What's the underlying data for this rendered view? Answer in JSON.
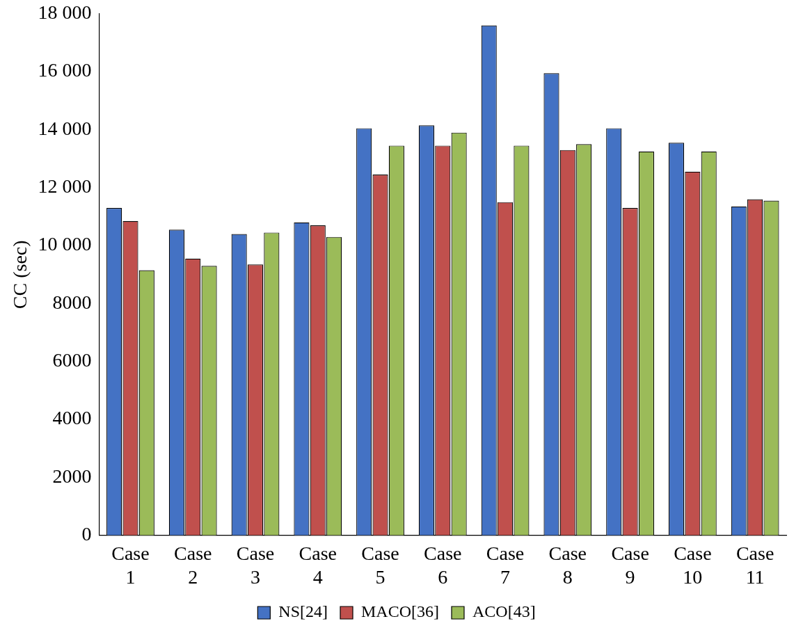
{
  "chart_data": {
    "type": "bar",
    "y_label": "CC (sec)",
    "categories": [
      "Case 1",
      "Case 2",
      "Case 3",
      "Case 4",
      "Case 5",
      "Case 6",
      "Case 7",
      "Case 8",
      "Case 9",
      "Case 10",
      "Case 11"
    ],
    "series": [
      {
        "name": "NS[24]",
        "color": "#4472c4",
        "values": [
          11300,
          10550,
          10400,
          10800,
          14050,
          14150,
          17600,
          15950,
          14050,
          13550,
          11350
        ]
      },
      {
        "name": "MACO[36]",
        "color": "#c0504d",
        "values": [
          10850,
          9550,
          9350,
          10700,
          12450,
          13450,
          11500,
          13300,
          11300,
          12550,
          11600
        ]
      },
      {
        "name": "ACO[43]",
        "color": "#9bbb59",
        "values": [
          9150,
          9300,
          10450,
          10300,
          13450,
          13900,
          13450,
          13500,
          13250,
          13250,
          11550
        ]
      }
    ],
    "ylim": [
      0,
      18000
    ],
    "yticks": [
      0,
      2000,
      4000,
      6000,
      8000,
      {
        "value": 10000,
        "label": "10 000"
      },
      {
        "value": 12000,
        "label": "12 000"
      },
      {
        "value": 14000,
        "label": "14 000"
      },
      {
        "value": 16000,
        "label": "16 000"
      },
      {
        "value": 18000,
        "label": "18 000"
      }
    ],
    "grid": false,
    "legend": "bottom"
  }
}
